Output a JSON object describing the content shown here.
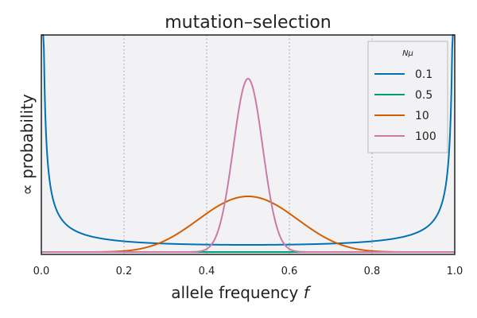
{
  "chart_data": {
    "type": "line",
    "title": "mutation–selection",
    "xlabel": "allele frequency",
    "xlabel_symbol": "f",
    "ylabel": "∝ probability",
    "xlim": [
      0.0,
      1.0
    ],
    "xticks": [
      "0.0",
      "0.2",
      "0.4",
      "0.6",
      "0.8",
      "1.0"
    ],
    "yticks_shown": false,
    "grid": "vertical dotted",
    "background": "#f2f2f5",
    "legend": {
      "title": "Nμ",
      "placement": "top-right"
    },
    "series": [
      {
        "name": "0.1",
        "color": "#0072b2",
        "theta": 0.1
      },
      {
        "name": "0.5",
        "color": "#009e73",
        "theta": 0.5
      },
      {
        "name": "10",
        "color": "#d55e00",
        "theta": 10
      },
      {
        "name": "100",
        "color": "#cc79a7",
        "theta": 100
      }
    ]
  }
}
